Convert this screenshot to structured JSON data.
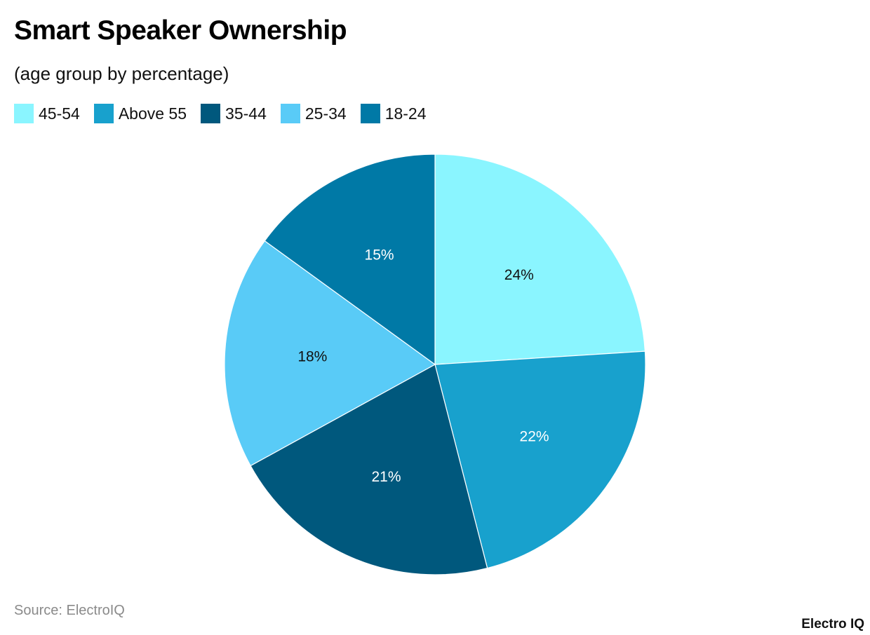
{
  "header": {
    "title": "Smart Speaker Ownership",
    "subtitle": "(age group by percentage)"
  },
  "legend": [
    {
      "label": "45-54",
      "color": "#8AF5FF"
    },
    {
      "label": "Above 55",
      "color": "#18A1CD"
    },
    {
      "label": "35-44",
      "color": "#00587D"
    },
    {
      "label": "25-34",
      "color": "#59CBF7"
    },
    {
      "label": "18-24",
      "color": "#0079A6"
    }
  ],
  "footer": {
    "source": "Source: ElectroIQ",
    "brand": "Electro IQ"
  },
  "chart_data": {
    "type": "pie",
    "title": "Smart Speaker Ownership",
    "subtitle": "(age group by percentage)",
    "categories": [
      "45-54",
      "Above 55",
      "35-44",
      "25-34",
      "18-24"
    ],
    "values": [
      24,
      22,
      21,
      18,
      15
    ],
    "labels": [
      "24%",
      "22%",
      "21%",
      "18%",
      "15%"
    ],
    "colors": [
      "#8AF5FF",
      "#18A1CD",
      "#00587D",
      "#59CBF7",
      "#0079A6"
    ],
    "label_colors": [
      "#111111",
      "#ffffff",
      "#ffffff",
      "#111111",
      "#ffffff"
    ],
    "start_angle": "12 o'clock",
    "direction": "clockwise",
    "legend_position": "top-left",
    "unit": "%"
  }
}
